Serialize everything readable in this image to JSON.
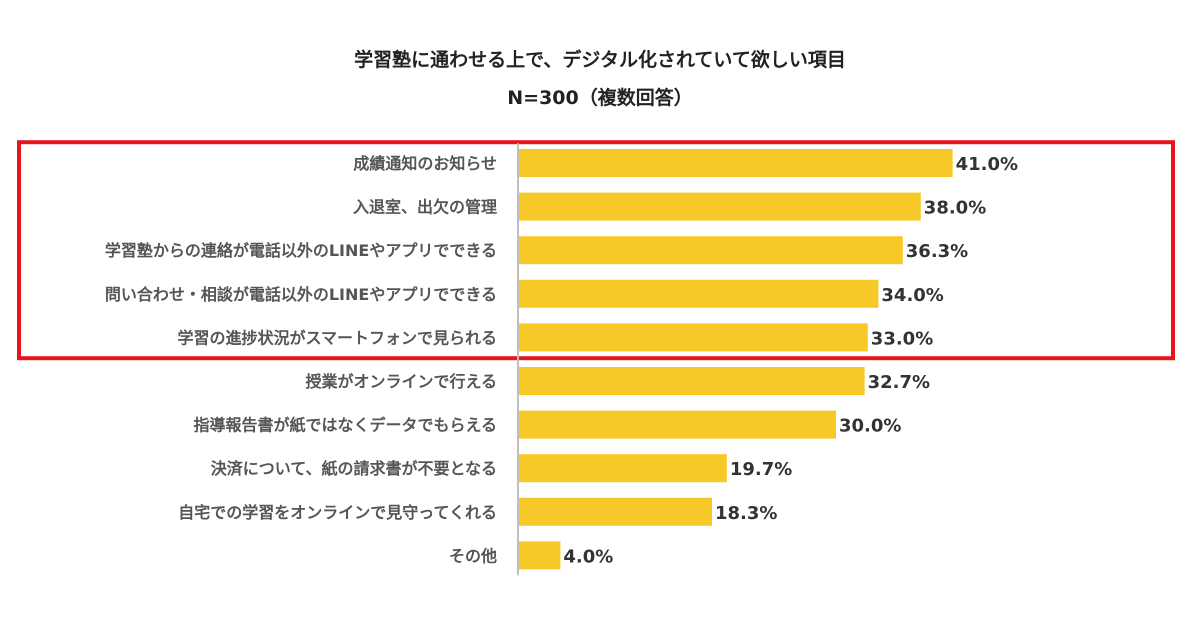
{
  "chart_data": {
    "type": "bar",
    "orientation": "horizontal",
    "title": "学習塾に通わせる上で、デジタル化されていて欲しい項目",
    "subtitle": "N=300（複数回答）",
    "categories": [
      "成績通知のお知らせ",
      "入退室、出欠の管理",
      "学習塾からの連絡が電話以外のLINEやアプリでできる",
      "問い合わせ・相談が電話以外のLINEやアプリでできる",
      "学習の進捗状況がスマートフォンで見られる",
      "授業がオンラインで行える",
      "指導報告書が紙ではなくデータでもらえる",
      "決済について、紙の請求書が不要となる",
      "自宅での学習をオンラインで見守ってくれる",
      "その他"
    ],
    "values": [
      41.0,
      38.0,
      36.3,
      34.0,
      33.0,
      32.7,
      30.0,
      19.7,
      18.3,
      4.0
    ],
    "value_labels": [
      "41.0%",
      "38.0%",
      "36.3%",
      "34.0%",
      "33.0%",
      "32.7%",
      "30.0%",
      "19.7%",
      "18.3%",
      "4.0%"
    ],
    "xlim": [
      0,
      50
    ],
    "grid": false,
    "legend": "none",
    "highlight": {
      "from_index": 0,
      "to_index": 4,
      "outline_color": "#e8141c"
    },
    "colors": {
      "bar": "#f7c928",
      "axis": "#bfbfbf",
      "value_text": "#333333",
      "category_text": "#555555"
    }
  }
}
